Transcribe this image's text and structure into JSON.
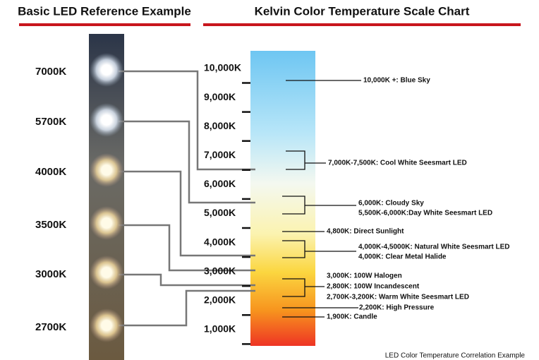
{
  "header": {
    "left_title": "Basic LED Reference Example",
    "right_title": "Kelvin Color Temperature Scale Chart"
  },
  "leds": [
    "7000K",
    "5700K",
    "4000K",
    "3500K",
    "3000K",
    "2700K"
  ],
  "scale": {
    "labels": [
      "10,000K",
      "9,000K",
      "8,000K",
      "7,000K",
      "6,000K",
      "5,000K",
      "4,000K",
      "3,000K",
      "2,000K",
      "1,000K"
    ]
  },
  "annotations": [
    "10,000K +: Blue Sky",
    "7,000K-7,500K: Cool White Seesmart LED",
    "6,000K: Cloudy Sky",
    "5,500K-6,000K:Day White Seesmart LED",
    "4,800K: Direct Sunlight",
    "4,000K-4,5000K: Natural White Seesmart LED",
    "4,000K: Clear Metal Halide",
    "3,000K: 100W Halogen",
    "2,800K: 100W Incandescent",
    "2,700K-3,200K: Warm White Seesmart LED",
    "2,200K: High Pressure",
    "1,900K: Candle"
  ],
  "footer": "LED Color Temperature Correlation Example"
}
